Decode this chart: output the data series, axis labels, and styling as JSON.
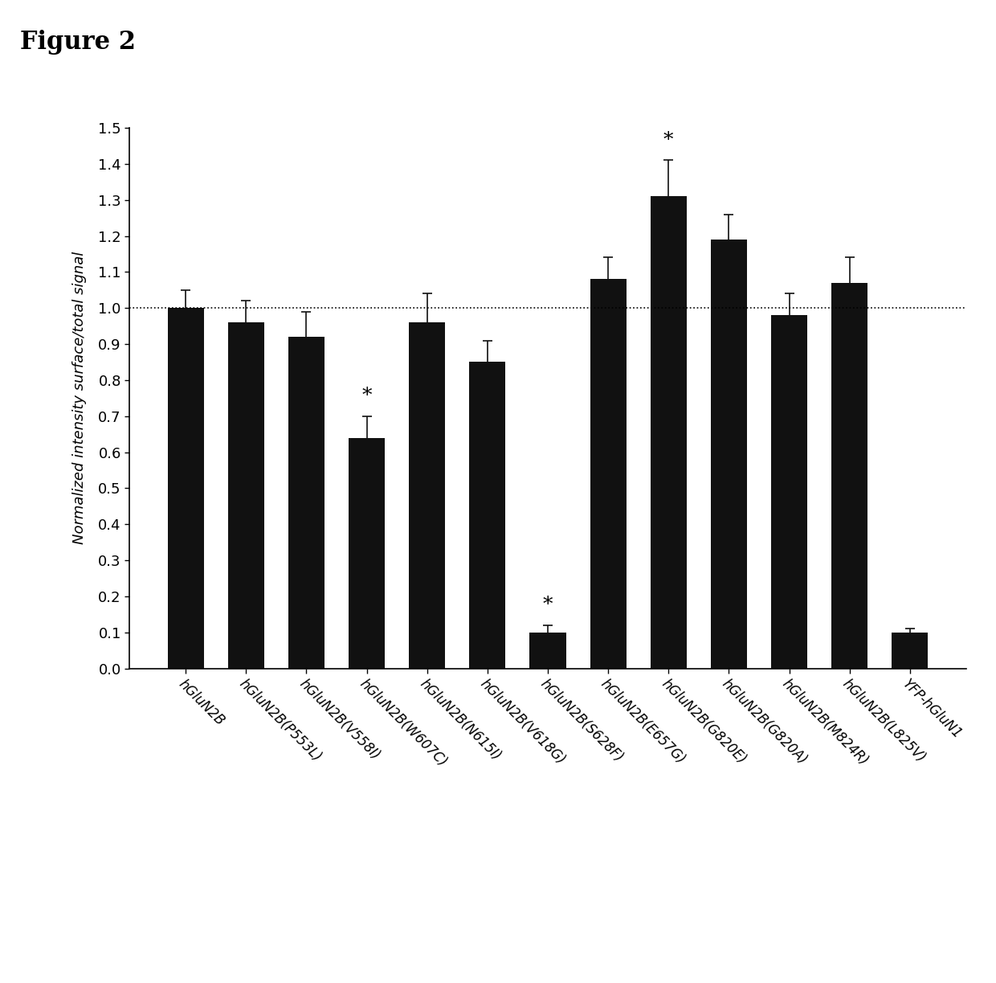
{
  "categories": [
    "hGluN2B",
    "hGluN2B(P553L)",
    "hGluN2B(V558I)",
    "hGluN2B(W607C)",
    "hGluN2B(N615I)",
    "hGluN2B(V618G)",
    "hGluN2B(S628F)",
    "hGluN2B(E657G)",
    "hGluN2B(G820E)",
    "hGluN2B(G820A)",
    "hGluN2B(M824R)",
    "hGluN2B(L825V)",
    "YFP-hGluN1"
  ],
  "values": [
    1.0,
    0.96,
    0.92,
    0.64,
    0.96,
    0.85,
    0.1,
    1.08,
    1.31,
    1.19,
    0.98,
    1.07,
    0.1
  ],
  "errors": [
    0.05,
    0.06,
    0.07,
    0.06,
    0.08,
    0.06,
    0.02,
    0.06,
    0.1,
    0.07,
    0.06,
    0.07,
    0.01
  ],
  "significant": [
    false,
    false,
    false,
    true,
    false,
    false,
    true,
    false,
    true,
    false,
    false,
    false,
    false
  ],
  "bar_color": "#111111",
  "ylabel": "Normalized intensity surface/total signal",
  "ylim": [
    0.0,
    1.5
  ],
  "yticks": [
    0.0,
    0.1,
    0.2,
    0.3,
    0.4,
    0.5,
    0.6,
    0.7,
    0.8,
    0.9,
    1.0,
    1.1,
    1.2,
    1.3,
    1.4,
    1.5
  ],
  "ref_line": 1.0,
  "title": "Figure 2",
  "background_color": "#ffffff",
  "fig_width": 12.4,
  "fig_height": 12.23
}
